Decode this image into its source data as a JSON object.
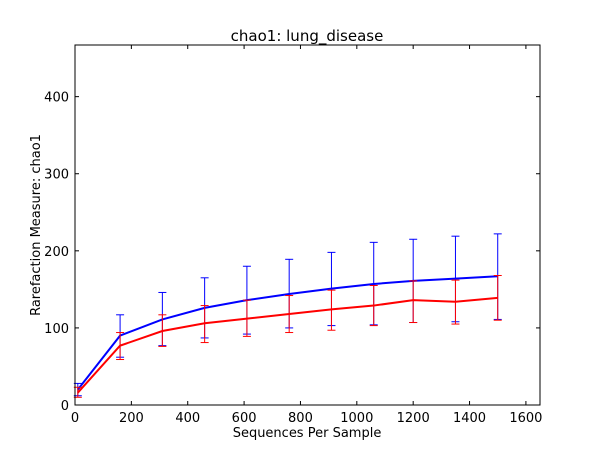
{
  "chart_data": {
    "type": "line",
    "title": "chao1: lung_disease",
    "xlabel": "Sequences Per Sample",
    "ylabel": "Rarefaction Measure: chao1",
    "xlim": [
      0,
      1650
    ],
    "ylim": [
      0,
      467
    ],
    "xticks": [
      0,
      200,
      400,
      600,
      800,
      1000,
      1200,
      1400,
      1600
    ],
    "yticks": [
      0,
      100,
      200,
      300,
      400
    ],
    "grid": false,
    "series": [
      {
        "color": "#0000ff",
        "x": [
          10,
          160,
          310,
          460,
          610,
          760,
          910,
          1060,
          1200,
          1350,
          1500
        ],
        "y": [
          20,
          90,
          111,
          126,
          136,
          144,
          151,
          157,
          161,
          164,
          167
        ],
        "err_low": [
          12,
          62,
          77,
          87,
          92,
          100,
          103,
          104,
          107,
          108,
          111
        ],
        "err_high": [
          28,
          117,
          146,
          165,
          180,
          189,
          198,
          211,
          215,
          219,
          222
        ]
      },
      {
        "color": "#ff0000",
        "x": [
          10,
          160,
          310,
          460,
          610,
          760,
          910,
          1060,
          1200,
          1350,
          1500
        ],
        "y": [
          16,
          77,
          96,
          106,
          112,
          118,
          124,
          129,
          136,
          134,
          139
        ],
        "err_low": [
          10,
          59,
          76,
          81,
          89,
          94,
          97,
          103,
          107,
          105,
          110
        ],
        "err_high": [
          23,
          94,
          117,
          129,
          136,
          142,
          149,
          155,
          161,
          162,
          168
        ]
      }
    ]
  }
}
